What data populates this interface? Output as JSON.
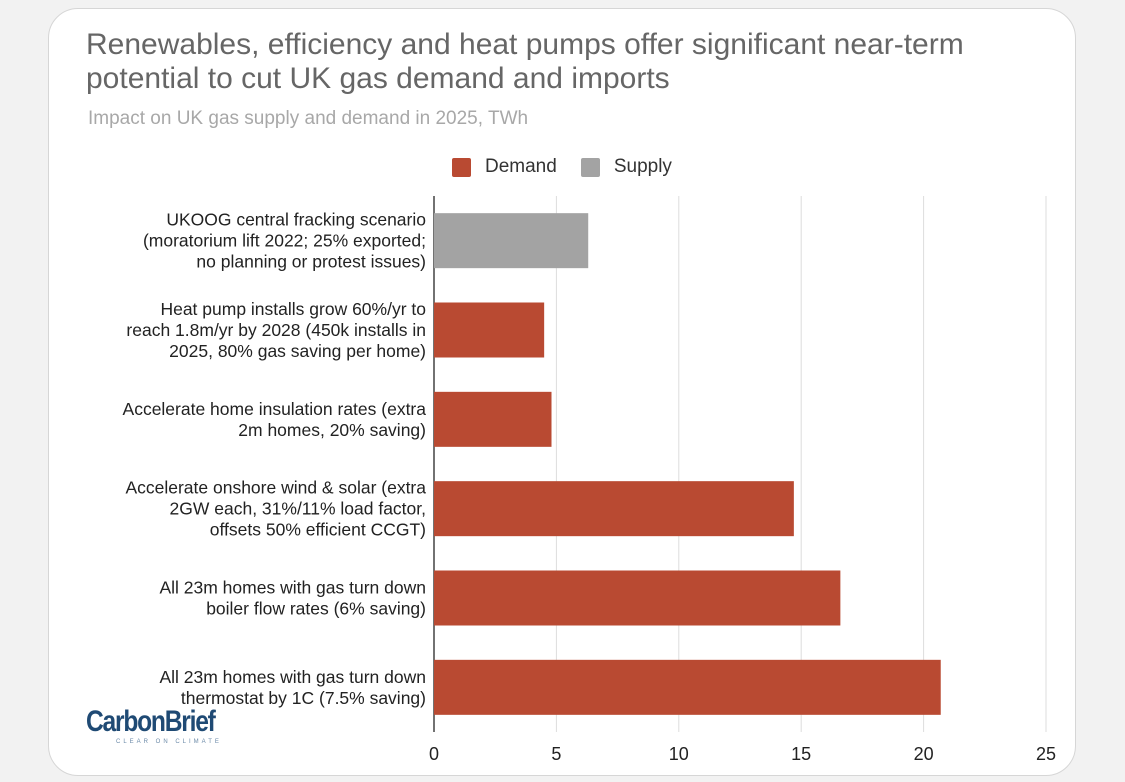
{
  "colors": {
    "demand": "#b94a32",
    "supply": "#a3a3a3",
    "grid": "#dddddd",
    "axis": "#444444",
    "text": "#222222"
  },
  "chart_data": {
    "type": "bar",
    "orientation": "horizontal",
    "title": "Renewables, efficiency and heat pumps offer significant near-term potential to cut UK gas demand and imports",
    "subtitle": "Impact on UK gas supply and demand in 2025, TWh",
    "legend": [
      {
        "name": "Demand",
        "color": "#b94a32"
      },
      {
        "name": "Supply",
        "color": "#a3a3a3"
      }
    ],
    "legend_position": "top",
    "xlim": [
      0,
      25
    ],
    "xticks": [
      "0",
      "5",
      "10",
      "15",
      "20",
      "25"
    ],
    "grid": true,
    "categories": [
      {
        "lines": [
          "UKOOG central fracking scenario",
          "(moratorium lift 2022; 25% exported;",
          "no planning or protest issues)"
        ],
        "value": 6.3,
        "series": "Supply"
      },
      {
        "lines": [
          "Heat pump installs grow 60%/yr to",
          "reach 1.8m/yr by 2028 (450k installs in",
          "2025, 80% gas saving per home)"
        ],
        "value": 4.5,
        "series": "Demand"
      },
      {
        "lines": [
          "Accelerate home insulation rates (extra",
          "2m homes, 20% saving)"
        ],
        "value": 4.8,
        "series": "Demand"
      },
      {
        "lines": [
          "Accelerate onshore wind & solar (extra",
          "2GW each, 31%/11% load factor,",
          "offsets 50% efficient CCGT)"
        ],
        "value": 14.7,
        "series": "Demand"
      },
      {
        "lines": [
          "All 23m homes with gas turn down",
          "boiler flow rates (6% saving)"
        ],
        "value": 16.6,
        "series": "Demand"
      },
      {
        "lines": [
          "All 23m homes with gas turn down",
          "thermostat by 1C (7.5% saving)"
        ],
        "value": 20.7,
        "series": "Demand"
      }
    ]
  },
  "logo": {
    "name": "CarbonBrief",
    "tagline": "CLEAR ON CLIMATE"
  }
}
